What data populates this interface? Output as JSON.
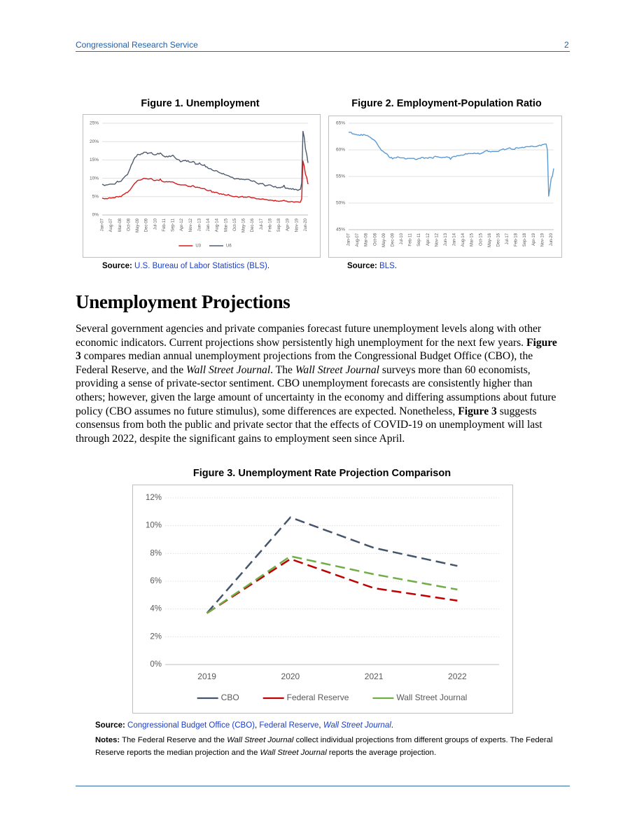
{
  "header": {
    "publisher": "Congressional Research Service",
    "page": "2"
  },
  "heading": "Unemployment Projections",
  "body": {
    "runs": [
      "Several government agencies and private companies forecast future unemployment levels along with other economic indicators. Current projections show persistently high unemployment for the next few years.",
      "Figure 3",
      "compares median annual unemployment projections from the Congressional Budget Office (CBO), the Federal Reserve, and the",
      "Wall Street Journal",
      ". The",
      "Wall Street Journal",
      "surveys more than 60 economists, providing a sense of private-sector sentiment. CBO unemployment forecasts are consistently higher than others; however, given the large amount of uncertainty in the economy and differing assumptions about future policy (CBO assumes no future stimulus), some differences are expected. Nonetheless,",
      "Figure 3",
      "suggests consensus from both the public and private sector that the effects of COVID-19 on unemployment will last through 2022, despite the significant gains to employment seen since April."
    ]
  },
  "notes": [
    "Notes:",
    "The Federal Reserve and the",
    "Wall Street Journal",
    "collect individual projections from different groups of experts. The Federal Reserve reports the median projection and the",
    "Wall Street Journal",
    "reports the average projection."
  ],
  "chart_data": [
    {
      "type": "line",
      "title": "Figure 1. Unemployment",
      "source": [
        "Source:",
        "U.S. Bureau of Labor Statistics (BLS)",
        "."
      ],
      "categories": [
        "Jan-07",
        null,
        null,
        null,
        null,
        null,
        null,
        "Aug-07",
        null,
        null,
        null,
        null,
        null,
        null,
        "Mar-08",
        null,
        null,
        null,
        null,
        null,
        null,
        "Oct-08",
        null,
        null,
        null,
        null,
        null,
        null,
        "May-09",
        null,
        null,
        null,
        null,
        null,
        null,
        "Dec-09",
        null,
        null,
        null,
        null,
        null,
        null,
        "Jul-10",
        null,
        null,
        null,
        null,
        null,
        null,
        "Feb-11",
        null,
        null,
        null,
        null,
        null,
        null,
        "Sep-11",
        null,
        null,
        null,
        null,
        null,
        null,
        "Apr-12",
        null,
        null,
        null,
        null,
        null,
        null,
        "Nov-12",
        null,
        null,
        null,
        null,
        null,
        null,
        "Jun-13",
        null,
        null,
        null,
        null,
        null,
        null,
        "Jan-14",
        null,
        null,
        null,
        null,
        null,
        null,
        "Aug-14",
        null,
        null,
        null,
        null,
        null,
        null,
        "Mar-15",
        null,
        null,
        null,
        null,
        null,
        null,
        "Oct-15",
        null,
        null,
        null,
        null,
        null,
        null,
        "May-16",
        null,
        null,
        null,
        null,
        null,
        null,
        "Dec-16",
        null,
        null,
        null,
        null,
        null,
        null,
        "Jul-17",
        null,
        null,
        null,
        null,
        null,
        null,
        "Feb-18",
        null,
        null,
        null,
        null,
        null,
        null,
        "Sep-18",
        null,
        null,
        null,
        null,
        null,
        null,
        "Apr-19",
        null,
        null,
        null,
        null,
        null,
        null,
        "Nov-19",
        null,
        null,
        null,
        null,
        null,
        null,
        "Jun-20",
        null,
        null
      ],
      "series": [
        {
          "name": "U3",
          "color": "#d7191c",
          "values": [
            4.6,
            4.5,
            4.4,
            4.5,
            4.4,
            4.6,
            4.7,
            4.6,
            4.7,
            4.7,
            4.7,
            5.0,
            5.0,
            4.9,
            5.1,
            5.0,
            5.4,
            5.6,
            5.8,
            6.1,
            6.1,
            6.5,
            6.8,
            7.3,
            7.8,
            8.3,
            8.7,
            9.0,
            9.4,
            9.5,
            9.5,
            9.6,
            9.8,
            10.0,
            9.9,
            9.9,
            9.8,
            9.8,
            9.9,
            9.9,
            9.6,
            9.4,
            9.4,
            9.5,
            9.5,
            9.4,
            9.8,
            9.3,
            9.1,
            9.0,
            9.0,
            9.1,
            9.0,
            9.1,
            9.0,
            9.0,
            9.0,
            8.8,
            8.6,
            8.5,
            8.3,
            8.3,
            8.2,
            8.2,
            8.2,
            8.2,
            8.2,
            8.0,
            7.8,
            7.8,
            7.7,
            7.9,
            8.0,
            7.7,
            7.5,
            7.6,
            7.5,
            7.5,
            7.3,
            7.2,
            7.2,
            7.2,
            6.9,
            6.7,
            6.6,
            6.7,
            6.7,
            6.2,
            6.3,
            6.1,
            6.2,
            6.1,
            5.9,
            5.7,
            5.8,
            5.6,
            5.7,
            5.5,
            5.4,
            5.4,
            5.6,
            5.3,
            5.2,
            5.1,
            5.0,
            5.0,
            5.1,
            5.0,
            4.8,
            4.9,
            5.0,
            5.1,
            4.8,
            4.9,
            4.8,
            4.9,
            5.0,
            4.9,
            4.7,
            4.7,
            4.7,
            4.6,
            4.4,
            4.4,
            4.4,
            4.3,
            4.3,
            4.4,
            4.3,
            4.2,
            4.2,
            4.1,
            4.0,
            4.1,
            4.0,
            4.0,
            3.8,
            4.0,
            3.8,
            3.8,
            3.7,
            3.8,
            3.8,
            3.9,
            4.0,
            3.8,
            3.8,
            3.6,
            3.6,
            3.6,
            3.7,
            3.6,
            3.5,
            3.6,
            3.6,
            3.6,
            3.5,
            3.5,
            4.4,
            14.7,
            13.3,
            11.1,
            10.2,
            8.4
          ]
        },
        {
          "name": "U6",
          "color": "#4f5b6e",
          "values": [
            8.4,
            8.2,
            8.0,
            8.2,
            8.2,
            8.3,
            8.4,
            8.4,
            8.4,
            8.4,
            8.4,
            8.8,
            9.2,
            9.0,
            9.1,
            9.2,
            9.7,
            10.1,
            10.5,
            10.8,
            11.0,
            11.8,
            12.6,
            13.6,
            14.2,
            15.1,
            15.7,
            15.9,
            16.5,
            16.5,
            16.4,
            16.7,
            16.7,
            17.1,
            17.1,
            17.1,
            16.7,
            16.9,
            16.9,
            17.0,
            16.6,
            16.4,
            16.4,
            16.5,
            16.8,
            16.6,
            16.9,
            16.6,
            16.2,
            16.0,
            15.8,
            16.0,
            15.8,
            16.1,
            15.9,
            16.1,
            16.3,
            15.9,
            15.5,
            15.2,
            15.1,
            15.0,
            14.5,
            14.6,
            14.8,
            14.8,
            14.9,
            14.6,
            14.8,
            14.4,
            14.4,
            14.4,
            14.6,
            14.4,
            13.8,
            13.9,
            13.8,
            14.2,
            13.8,
            13.6,
            13.5,
            13.7,
            13.1,
            13.1,
            12.7,
            12.6,
            12.6,
            12.3,
            12.1,
            12.0,
            12.1,
            12.0,
            11.7,
            11.5,
            11.4,
            11.2,
            11.3,
            11.0,
            10.9,
            10.8,
            10.7,
            10.5,
            10.3,
            10.3,
            10.0,
            9.8,
            9.9,
            9.9,
            9.9,
            9.7,
            9.8,
            9.7,
            9.7,
            9.6,
            9.7,
            9.7,
            9.7,
            9.5,
            9.3,
            9.2,
            9.3,
            9.1,
            8.8,
            8.6,
            8.4,
            8.6,
            8.5,
            8.6,
            8.3,
            7.9,
            8.0,
            8.1,
            8.2,
            8.2,
            8.0,
            7.8,
            7.6,
            7.8,
            7.5,
            7.4,
            7.5,
            7.4,
            7.6,
            7.6,
            8.1,
            7.3,
            7.3,
            7.3,
            7.1,
            7.2,
            7.0,
            7.2,
            6.9,
            7.0,
            6.9,
            6.7,
            6.9,
            7.0,
            8.7,
            22.8,
            21.2,
            18.0,
            16.5,
            14.2
          ]
        }
      ],
      "ylim": [
        0,
        25
      ],
      "yticks": [
        {
          "value": 0,
          "label": "0%"
        },
        {
          "value": 5,
          "label": "5%"
        },
        {
          "value": 10,
          "label": "10%"
        },
        {
          "value": 15,
          "label": "15%"
        },
        {
          "value": 20,
          "label": "20%"
        },
        {
          "value": 25,
          "label": "25%"
        }
      ],
      "grid": true,
      "legend": "bottom"
    },
    {
      "type": "line",
      "title": "Figure 2. Employment-Population Ratio",
      "source": [
        "Source:",
        "BLS",
        "."
      ],
      "categories": [
        "Jan-07",
        null,
        null,
        null,
        null,
        null,
        null,
        "Aug-07",
        null,
        null,
        null,
        null,
        null,
        null,
        "Mar-08",
        null,
        null,
        null,
        null,
        null,
        null,
        "Oct-08",
        null,
        null,
        null,
        null,
        null,
        null,
        "May-09",
        null,
        null,
        null,
        null,
        null,
        null,
        "Dec-09",
        null,
        null,
        null,
        null,
        null,
        null,
        "Jul-10",
        null,
        null,
        null,
        null,
        null,
        null,
        "Feb-11",
        null,
        null,
        null,
        null,
        null,
        null,
        "Sep-11",
        null,
        null,
        null,
        null,
        null,
        null,
        "Apr-12",
        null,
        null,
        null,
        null,
        null,
        null,
        "Nov-12",
        null,
        null,
        null,
        null,
        null,
        null,
        "Jun-13",
        null,
        null,
        null,
        null,
        null,
        null,
        "Jan-14",
        null,
        null,
        null,
        null,
        null,
        null,
        "Aug-14",
        null,
        null,
        null,
        null,
        null,
        null,
        "Mar-15",
        null,
        null,
        null,
        null,
        null,
        null,
        "Oct-15",
        null,
        null,
        null,
        null,
        null,
        null,
        "May-16",
        null,
        null,
        null,
        null,
        null,
        null,
        "Dec-16",
        null,
        null,
        null,
        null,
        null,
        null,
        "Jul-17",
        null,
        null,
        null,
        null,
        null,
        null,
        "Feb-18",
        null,
        null,
        null,
        null,
        null,
        null,
        "Sep-18",
        null,
        null,
        null,
        null,
        null,
        null,
        "Apr-19",
        null,
        null,
        null,
        null,
        null,
        null,
        "Nov-19",
        null,
        null,
        null,
        null,
        null,
        null,
        "Jun-20",
        null,
        null
      ],
      "series": [
        {
          "color": "#5b9bd5",
          "values": [
            63.3,
            63.3,
            63.3,
            63.0,
            63.0,
            62.9,
            62.9,
            62.8,
            62.8,
            62.7,
            62.9,
            62.7,
            62.9,
            62.8,
            62.7,
            62.7,
            62.5,
            62.4,
            62.2,
            62.0,
            61.9,
            61.7,
            61.4,
            61.0,
            60.6,
            60.3,
            59.9,
            59.8,
            59.6,
            59.4,
            59.3,
            59.1,
            58.7,
            58.5,
            58.6,
            58.3,
            58.5,
            58.5,
            58.5,
            58.7,
            58.6,
            58.5,
            58.5,
            58.5,
            58.5,
            58.3,
            58.3,
            58.4,
            58.4,
            58.4,
            58.4,
            58.4,
            58.4,
            58.2,
            58.2,
            58.3,
            58.4,
            58.4,
            58.6,
            58.6,
            58.4,
            58.5,
            58.5,
            58.4,
            58.6,
            58.6,
            58.5,
            58.4,
            58.7,
            58.8,
            58.7,
            58.7,
            58.6,
            58.6,
            58.5,
            58.6,
            58.6,
            58.6,
            58.7,
            58.6,
            58.6,
            58.2,
            58.6,
            58.7,
            58.8,
            58.7,
            58.9,
            58.9,
            58.9,
            59.0,
            59.0,
            59.0,
            59.1,
            59.3,
            59.2,
            59.3,
            59.3,
            59.3,
            59.3,
            59.3,
            59.4,
            59.3,
            59.3,
            59.4,
            59.2,
            59.3,
            59.4,
            59.5,
            59.7,
            59.8,
            59.9,
            59.7,
            59.7,
            59.6,
            59.7,
            59.7,
            59.7,
            59.7,
            59.7,
            59.7,
            59.9,
            60.0,
            60.1,
            60.2,
            60.0,
            60.1,
            60.2,
            60.3,
            60.4,
            60.2,
            60.1,
            60.1,
            60.1,
            60.4,
            60.4,
            60.3,
            60.4,
            60.4,
            60.5,
            60.4,
            60.5,
            60.6,
            60.6,
            60.6,
            60.6,
            60.7,
            60.7,
            60.6,
            60.6,
            60.6,
            60.7,
            60.8,
            60.9,
            60.8,
            61.0,
            61.0,
            61.1,
            61.1,
            60.0,
            51.3,
            52.8,
            54.6,
            55.1,
            56.5
          ]
        }
      ],
      "ylim": [
        45,
        65
      ],
      "yticks": [
        {
          "value": 45,
          "label": "45%"
        },
        {
          "value": 50,
          "label": "50%"
        },
        {
          "value": 55,
          "label": "55%"
        },
        {
          "value": 60,
          "label": "60%"
        },
        {
          "value": 65,
          "label": "65%"
        }
      ],
      "grid": true
    },
    {
      "type": "line",
      "title": "Figure 3.  Unemployment Rate Projection Comparison",
      "source": [
        "Source:",
        "Congressional Budget Office (CBO)",
        ",",
        "Federal Reserve",
        ",",
        "Wall Street Journal",
        "."
      ],
      "categories": [
        "2019",
        "2020",
        "2021",
        "2022"
      ],
      "series": [
        {
          "name": "CBO",
          "color": "#44546a",
          "values": [
            3.7,
            10.6,
            8.4,
            7.1
          ]
        },
        {
          "name": "Federal Reserve",
          "color": "#c00000",
          "values": [
            3.7,
            7.6,
            5.5,
            4.6
          ]
        },
        {
          "name": "Wall Street Journal",
          "color": "#70ad47",
          "values": [
            3.7,
            7.8,
            6.5,
            5.4
          ]
        }
      ],
      "ylim": [
        0,
        12
      ],
      "yticks": [
        {
          "value": 0,
          "label": "0%"
        },
        {
          "value": 2,
          "label": "2%"
        },
        {
          "value": 4,
          "label": "4%"
        },
        {
          "value": 6,
          "label": "6%"
        },
        {
          "value": 8,
          "label": "8%"
        },
        {
          "value": 10,
          "label": "10%"
        },
        {
          "value": 12,
          "label": "12%"
        }
      ],
      "grid": "dotted",
      "line_style": "dashed",
      "legend": "bottom"
    }
  ]
}
